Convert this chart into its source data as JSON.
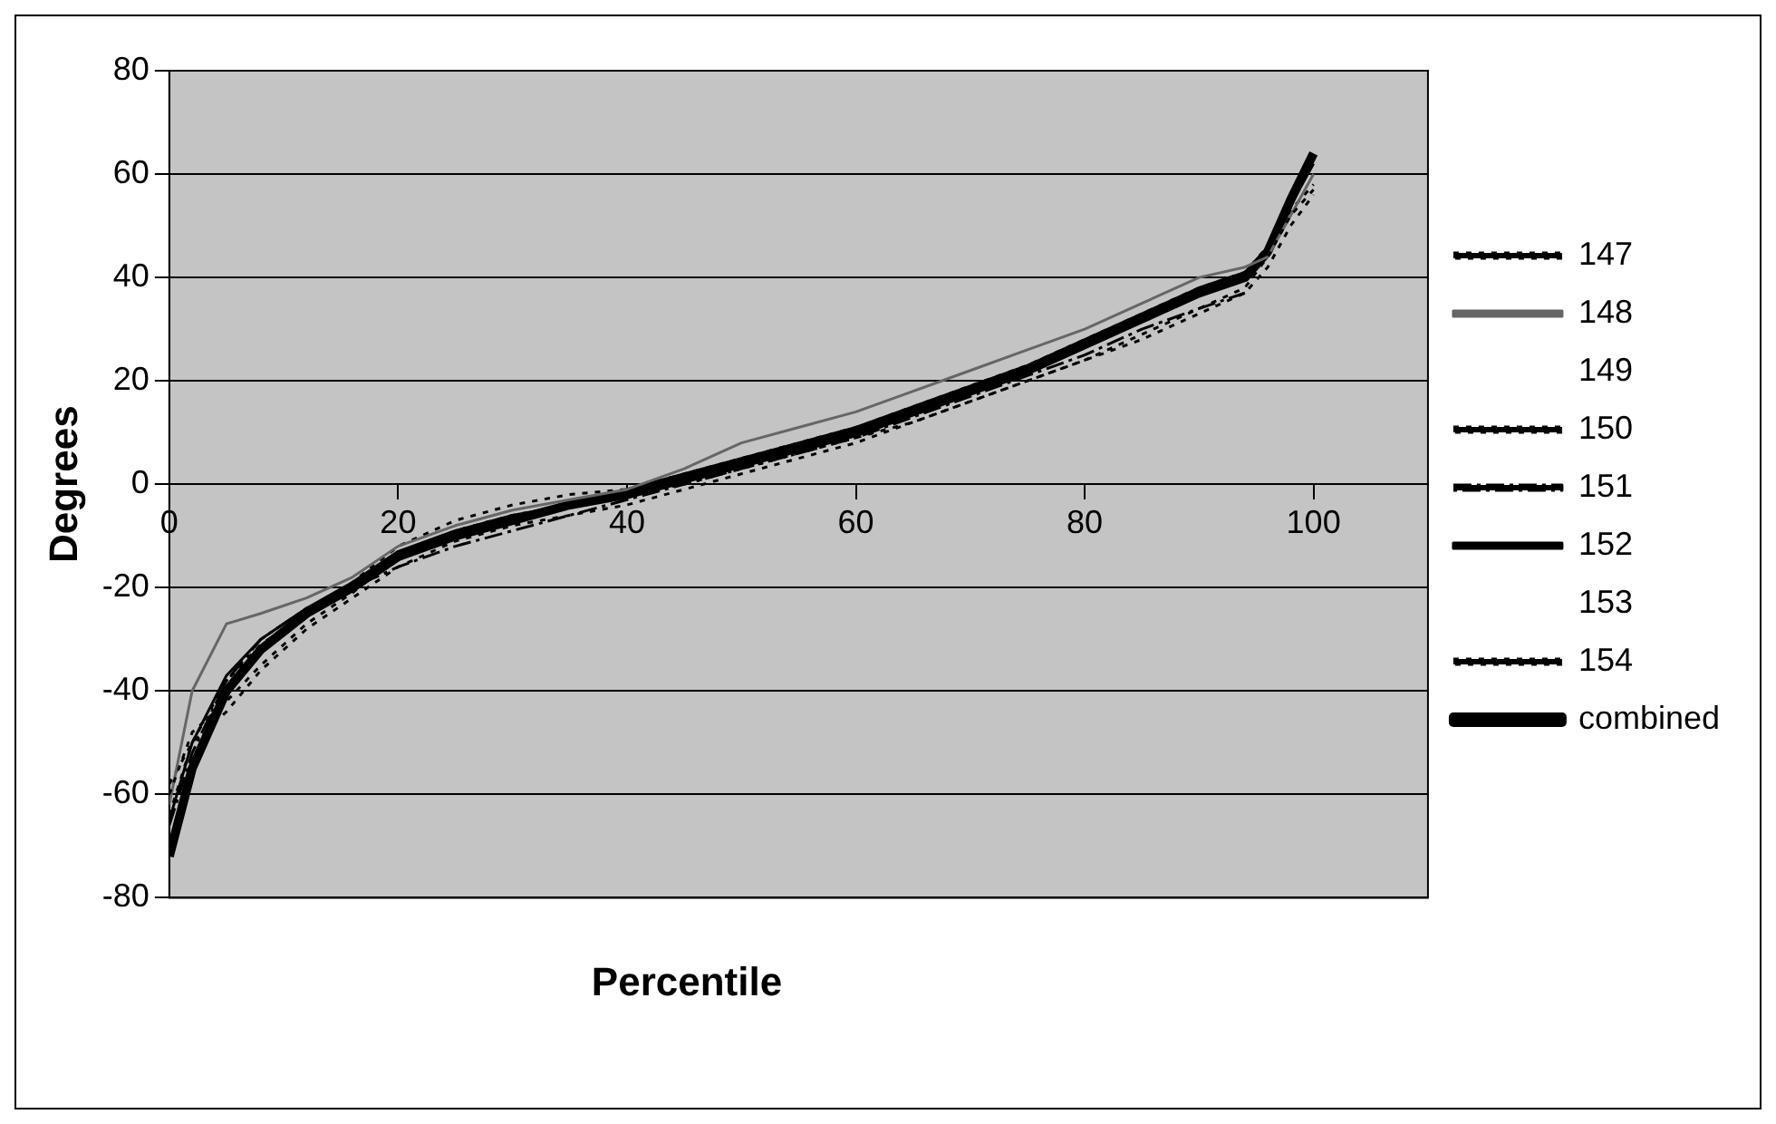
{
  "chart_data": {
    "type": "line",
    "xlabel": "Percentile",
    "ylabel": "Degrees",
    "x": [
      0,
      2,
      5,
      8,
      12,
      16,
      20,
      25,
      30,
      35,
      40,
      45,
      50,
      55,
      60,
      65,
      70,
      75,
      80,
      85,
      90,
      94,
      96,
      98,
      100
    ],
    "xlim": [
      0,
      110
    ],
    "xticks": [
      0,
      20,
      40,
      60,
      80,
      100
    ],
    "ylim": [
      -80,
      80
    ],
    "yticks": [
      -80,
      -60,
      -40,
      -20,
      0,
      20,
      40,
      60,
      80
    ],
    "grid": "y",
    "legend": "right",
    "marker": "none",
    "series": [
      {
        "name": "147",
        "color": "#000000",
        "line_style": "dotted",
        "values": [
          -60,
          -48,
          -42,
          -35,
          -27,
          -21,
          -14,
          -9,
          -6,
          -4,
          -2,
          0,
          3,
          6,
          9,
          12,
          16,
          20,
          24,
          29,
          34,
          38,
          44,
          52,
          57
        ]
      },
      {
        "name": "148",
        "color": "#666666",
        "line_style": "solid",
        "values": [
          -62,
          -40,
          -27,
          -25,
          -22,
          -18,
          -12,
          -8,
          -5,
          -3,
          -1,
          3,
          8,
          11,
          14,
          18,
          22,
          26,
          30,
          35,
          40,
          42,
          44,
          52,
          60
        ]
      },
      {
        "name": "149",
        "line_style": "solid",
        "values": [
          null,
          null,
          null,
          null,
          null,
          null,
          null,
          null,
          null,
          null,
          null,
          null,
          null,
          null,
          null,
          null,
          null,
          null,
          null,
          null,
          null,
          null,
          null,
          null,
          null
        ]
      },
      {
        "name": "150",
        "color": "#000000",
        "line_style": "dotted",
        "values": [
          -58,
          -50,
          -44,
          -36,
          -28,
          -22,
          -16,
          -11,
          -8,
          -6,
          -4,
          -1,
          2,
          5,
          8,
          12,
          16,
          20,
          24,
          28,
          33,
          37,
          42,
          50,
          56
        ]
      },
      {
        "name": "151",
        "color": "#000000",
        "line_style": "dashed",
        "values": [
          -66,
          -52,
          -38,
          -30,
          -24,
          -20,
          -16,
          -12,
          -9,
          -6,
          -3,
          0,
          3,
          6,
          9,
          13,
          17,
          21,
          25,
          30,
          34,
          37,
          null,
          null,
          null
        ]
      },
      {
        "name": "152",
        "color": "#000000",
        "line_style": "solid",
        "values": [
          -65,
          -50,
          -37,
          -30,
          -24,
          -19,
          -13,
          -9,
          -6,
          -4,
          -1,
          2,
          5,
          8,
          11,
          15,
          19,
          23,
          28,
          33,
          38,
          41,
          45,
          54,
          62
        ]
      },
      {
        "name": "153",
        "line_style": "solid",
        "values": [
          null,
          null,
          null,
          null,
          null,
          null,
          null,
          null,
          null,
          null,
          null,
          null,
          null,
          null,
          null,
          null,
          null,
          null,
          null,
          null,
          null,
          null,
          null,
          null,
          null
        ]
      },
      {
        "name": "154",
        "color": "#000000",
        "line_style": "dotted",
        "values": [
          -64,
          -50,
          -38,
          -31,
          -25,
          -19,
          -12,
          -7,
          -4,
          -2,
          -1,
          2,
          5,
          8,
          11,
          15,
          19,
          23,
          28,
          33,
          38,
          41,
          46,
          53,
          58
        ]
      },
      {
        "name": "combined",
        "color": "#000000",
        "line_style": "solid",
        "values": [
          -72,
          -55,
          -40,
          -32,
          -25,
          -20,
          -14,
          -10,
          -7,
          -4,
          -2,
          1,
          4,
          7,
          10,
          14,
          18,
          22,
          27,
          32,
          37,
          40,
          45,
          55,
          64
        ]
      }
    ]
  }
}
